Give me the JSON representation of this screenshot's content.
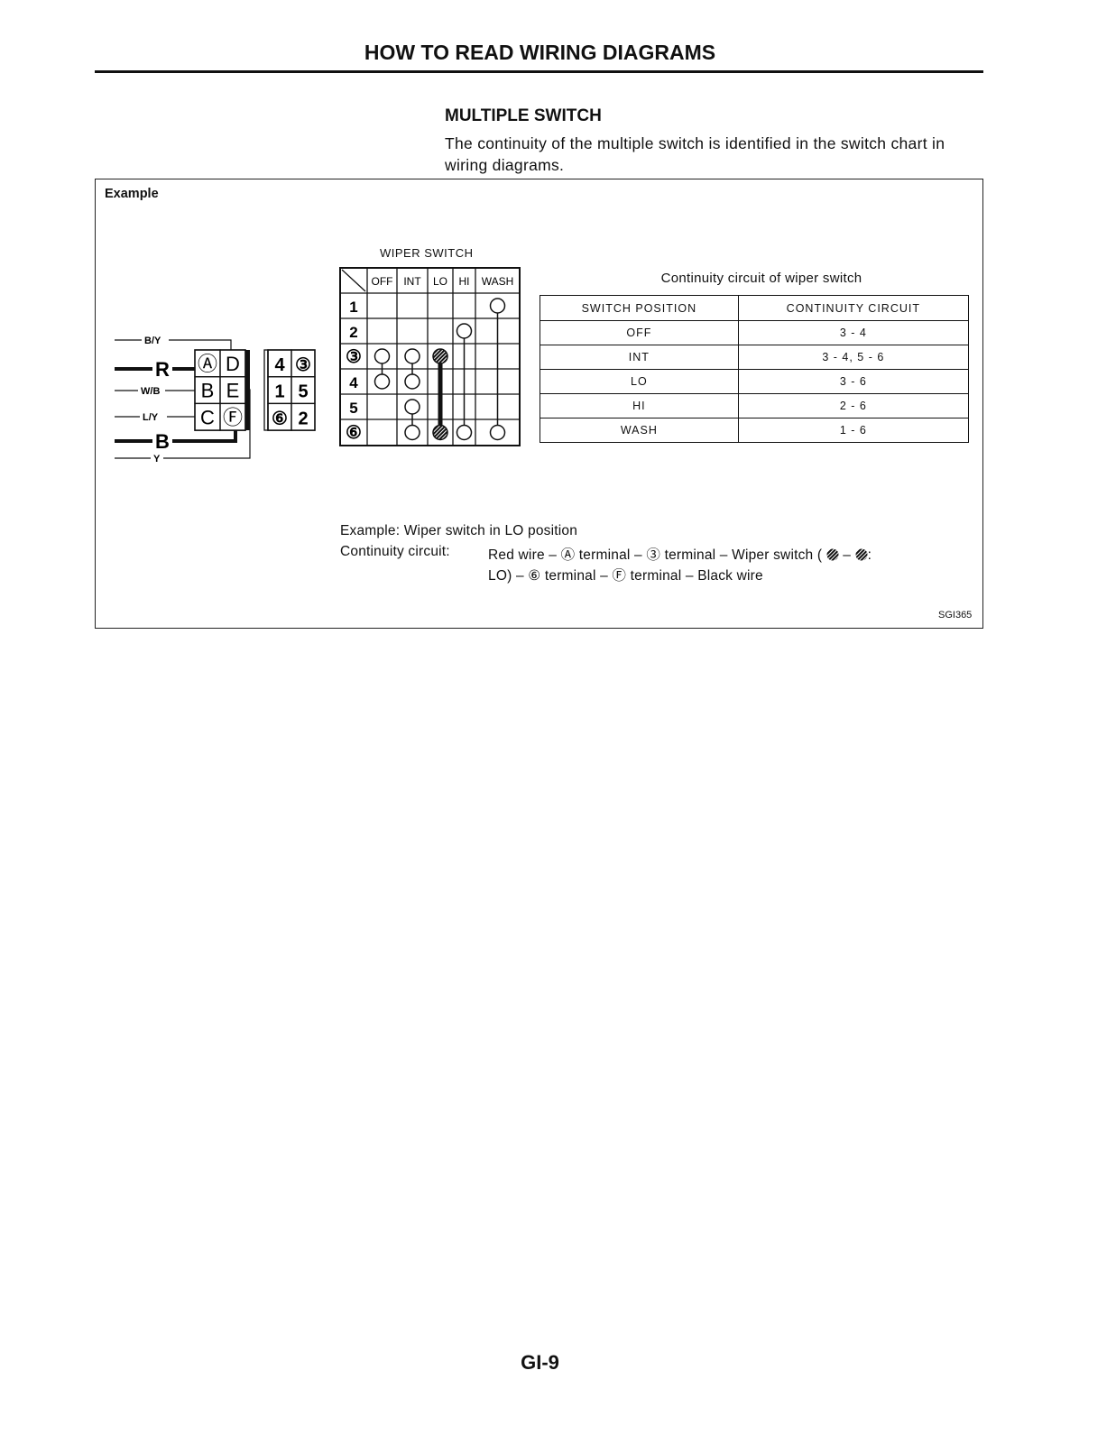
{
  "header": {
    "title": "HOW TO READ WIRING DIAGRAMS"
  },
  "section": {
    "title": "MULTIPLE SWITCH",
    "paragraph": "The continuity of the multiple switch is identified in the switch chart in wiring diagrams."
  },
  "example": {
    "label": "Example",
    "connector": {
      "wires": [
        {
          "label": "B/Y",
          "thick": false
        },
        {
          "label": "R",
          "thick": true
        },
        {
          "label": "W/B",
          "thick": false
        },
        {
          "label": "L/Y",
          "thick": false
        },
        {
          "label": "B",
          "thick": true
        },
        {
          "label": "Y",
          "thick": false
        }
      ],
      "harness_terminals": [
        [
          "Ⓐ",
          "D"
        ],
        [
          "B",
          "E"
        ],
        [
          "C",
          "Ⓕ"
        ]
      ],
      "switch_terminals": [
        [
          "4",
          "③"
        ],
        [
          "1",
          "5"
        ],
        [
          "⑥",
          "2"
        ]
      ]
    },
    "switch_chart": {
      "title": "WIPER SWITCH",
      "positions": [
        "OFF",
        "INT",
        "LO",
        "HI",
        "WASH"
      ],
      "terminals": [
        "1",
        "2",
        "③",
        "4",
        "5",
        "⑥"
      ],
      "connections": {
        "OFF": [
          [
            3,
            4
          ]
        ],
        "INT": [
          [
            3,
            4
          ],
          [
            5,
            6
          ]
        ],
        "LO": [
          [
            3,
            6
          ]
        ],
        "HI": [
          [
            2,
            6
          ]
        ],
        "WASH": [
          [
            1,
            6
          ]
        ]
      },
      "highlighted_position": "LO"
    },
    "continuity_table": {
      "title": "Continuity circuit of wiper switch",
      "headers": [
        "SWITCH POSITION",
        "CONTINUITY CIRCUIT"
      ],
      "rows": [
        [
          "OFF",
          "3 - 4"
        ],
        [
          "INT",
          "3 - 4, 5 - 6"
        ],
        [
          "LO",
          "3 - 6"
        ],
        [
          "HI",
          "2 - 6"
        ],
        [
          "WASH",
          "1 - 6"
        ]
      ]
    },
    "explanation": {
      "line1": "Example:  Wiper switch in LO position",
      "label": "Continuity circuit:",
      "line2a": "Red wire – Ⓐ terminal – ③ terminal – Wiper switch (",
      "line2b": "–",
      "line2c": ":",
      "line3": "LO) – ⑥ terminal – Ⓕ terminal – Black wire"
    },
    "figure_code": "SGI365"
  },
  "footer": {
    "page": "GI-9"
  }
}
